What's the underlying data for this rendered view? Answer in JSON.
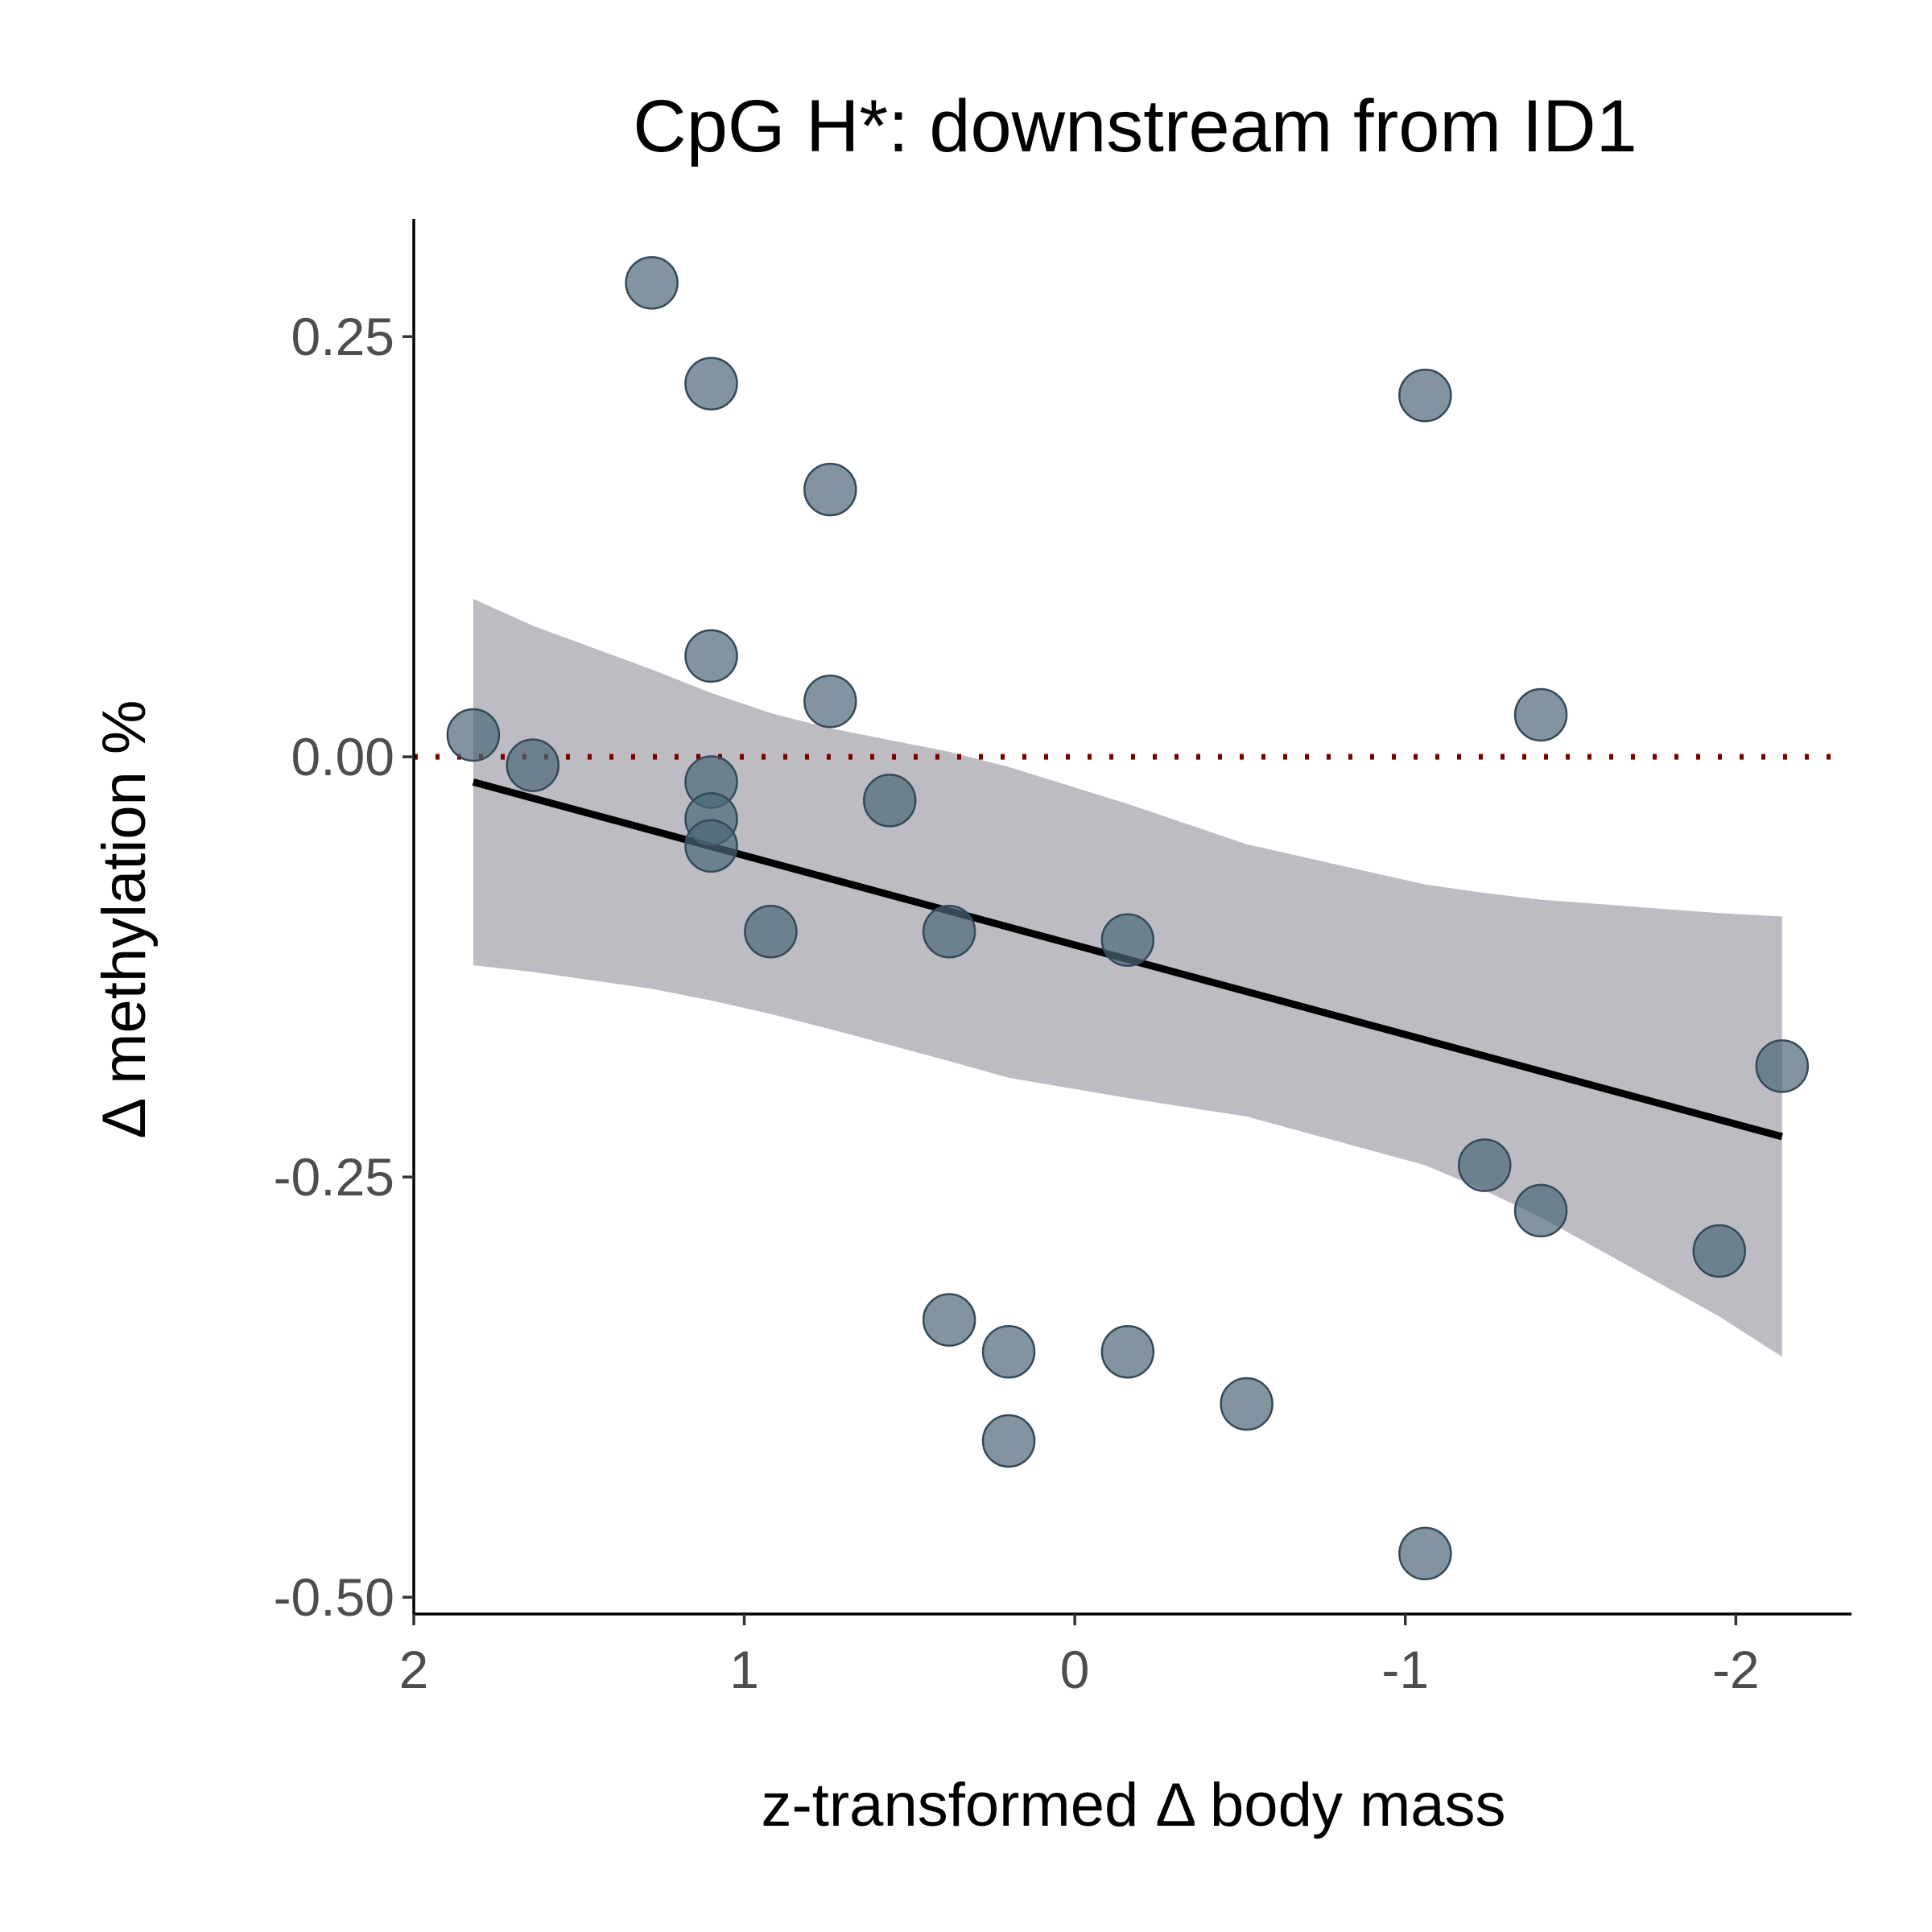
{
  "chart_data": {
    "type": "scatter",
    "title": "CpG H*: downstream from ID1",
    "xlabel": "z-transformed Δ body mass",
    "ylabel": "Δ methylation %",
    "x_reversed": true,
    "xlim": [
      2.0,
      -2.35
    ],
    "ylim": [
      -0.51,
      0.32
    ],
    "x_ticks": [
      2,
      1,
      0,
      -1,
      -2
    ],
    "x_tick_labels": [
      "2",
      "1",
      "0",
      "-1",
      "-2"
    ],
    "y_ticks": [
      0.25,
      0.0,
      -0.25,
      -0.5
    ],
    "y_tick_labels": [
      "0.25",
      "0.00",
      "-0.25",
      "-0.50"
    ],
    "grid": false,
    "legend": "none",
    "colors": {
      "points": "#4b6676",
      "point_outline": "#34495a",
      "fit_line": "#000000",
      "confidence_band": "#9fa0a8",
      "reference_line": "#7a0000"
    },
    "reference_line": {
      "y": 0.0,
      "style": "dotted"
    },
    "points": [
      {
        "x": 1.28,
        "y": 0.282
      },
      {
        "x": 1.1,
        "y": 0.222
      },
      {
        "x": 0.74,
        "y": 0.159
      },
      {
        "x": 1.1,
        "y": 0.06
      },
      {
        "x": 0.74,
        "y": 0.033
      },
      {
        "x": 1.82,
        "y": 0.013
      },
      {
        "x": 1.64,
        "y": -0.005
      },
      {
        "x": 1.1,
        "y": -0.015
      },
      {
        "x": 1.1,
        "y": -0.037
      },
      {
        "x": 1.1,
        "y": -0.053
      },
      {
        "x": 0.56,
        "y": -0.026
      },
      {
        "x": 0.92,
        "y": -0.104
      },
      {
        "x": 0.38,
        "y": -0.104
      },
      {
        "x": -0.16,
        "y": -0.109
      },
      {
        "x": -1.06,
        "y": 0.215
      },
      {
        "x": -1.41,
        "y": 0.025
      },
      {
        "x": -2.14,
        "y": -0.184
      },
      {
        "x": -1.24,
        "y": -0.243
      },
      {
        "x": -1.41,
        "y": -0.27
      },
      {
        "x": -1.95,
        "y": -0.294
      },
      {
        "x": 0.38,
        "y": -0.335
      },
      {
        "x": 0.2,
        "y": -0.354
      },
      {
        "x": -0.16,
        "y": -0.354
      },
      {
        "x": -0.52,
        "y": -0.385
      },
      {
        "x": 0.2,
        "y": -0.407
      },
      {
        "x": -1.06,
        "y": -0.474
      }
    ],
    "fit": {
      "x": [
        1.82,
        -2.14
      ],
      "y": [
        -0.015,
        -0.226
      ]
    },
    "confidence_band": {
      "x": [
        1.82,
        1.64,
        1.28,
        1.1,
        0.92,
        0.74,
        0.38,
        0.2,
        -0.16,
        -0.52,
        -1.06,
        -1.24,
        -1.41,
        -1.95,
        -2.14
      ],
      "upper": [
        0.094,
        0.078,
        0.052,
        0.038,
        0.026,
        0.017,
        0.003,
        -0.006,
        -0.028,
        -0.052,
        -0.076,
        -0.081,
        -0.085,
        -0.093,
        -0.095
      ],
      "lower": [
        -0.124,
        -0.128,
        -0.138,
        -0.145,
        -0.153,
        -0.162,
        -0.181,
        -0.191,
        -0.203,
        -0.214,
        -0.243,
        -0.258,
        -0.274,
        -0.333,
        -0.357
      ]
    }
  }
}
